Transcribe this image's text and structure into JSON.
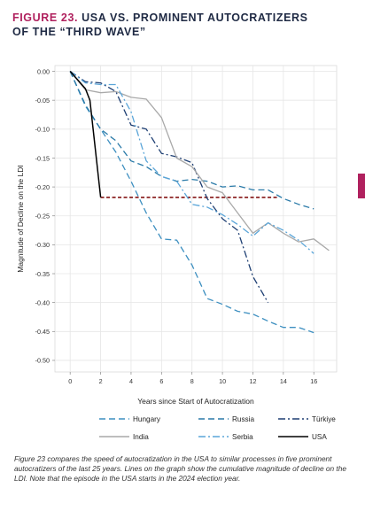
{
  "header": {
    "figure_label": "FIGURE 23.",
    "title_line1": "USA VS. PROMINENT AUTOCRATIZERS",
    "title_line2": "OF THE “THIRD WAVE”"
  },
  "caption": "Figure 23 compares the speed of autocratization in the USA to similar processes in five prominent autocratizers of the last 25 years. Lines on the graph show the cumulative magnitude of decline on the LDI. Note that the episode in the USA starts in the 2024 election year.",
  "colors": {
    "accent": "#b0215e",
    "title": "#1f2a44",
    "hungary": "#3d8fc0",
    "russia": "#2a7aa8",
    "turkiye": "#1e3f73",
    "india": "#a9a9a9",
    "serbia": "#5aa5d8",
    "usa": "#000000",
    "usa_reference": "#7a0000"
  },
  "chart_data": {
    "type": "line",
    "title": "",
    "xlabel": "Years since Start of Autocratization",
    "ylabel": "Magnitude of Decline on the LDI",
    "xlim": [
      -1,
      17.5
    ],
    "ylim": [
      -0.52,
      0.01
    ],
    "xticks": [
      0,
      2,
      4,
      6,
      8,
      10,
      12,
      14,
      16
    ],
    "yticks": [
      0.0,
      -0.05,
      -0.1,
      -0.15,
      -0.2,
      -0.25,
      -0.3,
      -0.35,
      -0.4,
      -0.45,
      -0.5
    ],
    "ytick_labels": [
      "0.00",
      "-0.05",
      "-0.10",
      "-0.15",
      "-0.20",
      "-0.25",
      "-0.30",
      "-0.35",
      "-0.40",
      "-0.45",
      "-0.50"
    ],
    "grid": true,
    "legend_position": "bottom",
    "series": [
      {
        "name": "Hungary",
        "style": "dashed",
        "x": [
          0,
          1,
          2,
          3,
          4,
          5,
          6,
          7,
          8,
          9,
          10,
          11,
          12,
          13,
          14,
          15,
          16
        ],
        "values": [
          0.0,
          -0.06,
          -0.1,
          -0.14,
          -0.19,
          -0.245,
          -0.29,
          -0.292,
          -0.335,
          -0.393,
          -0.403,
          -0.415,
          -0.42,
          -0.432,
          -0.443,
          -0.443,
          -0.452
        ]
      },
      {
        "name": "Russia",
        "style": "dashed",
        "x": [
          0,
          1,
          2,
          3,
          4,
          5,
          6,
          7,
          8,
          9,
          10,
          11,
          12,
          13,
          14,
          15,
          16
        ],
        "values": [
          0.0,
          -0.058,
          -0.1,
          -0.12,
          -0.155,
          -0.165,
          -0.182,
          -0.19,
          -0.187,
          -0.19,
          -0.2,
          -0.198,
          -0.205,
          -0.205,
          -0.22,
          -0.23,
          -0.238
        ]
      },
      {
        "name": "Türkiye",
        "style": "dashdot",
        "x": [
          0,
          1,
          2,
          3,
          4,
          5,
          6,
          7,
          8,
          9,
          10,
          11,
          12,
          13
        ],
        "values": [
          0.0,
          -0.018,
          -0.02,
          -0.035,
          -0.093,
          -0.1,
          -0.142,
          -0.148,
          -0.158,
          -0.22,
          -0.255,
          -0.275,
          -0.355,
          -0.4
        ]
      },
      {
        "name": "India",
        "style": "solid",
        "x": [
          0,
          1,
          2,
          3,
          4,
          5,
          6,
          7,
          8,
          9,
          10,
          11,
          12,
          13,
          14,
          15,
          16,
          17
        ],
        "values": [
          0.0,
          -0.032,
          -0.037,
          -0.035,
          -0.045,
          -0.048,
          -0.08,
          -0.15,
          -0.165,
          -0.2,
          -0.21,
          -0.245,
          -0.28,
          -0.262,
          -0.28,
          -0.295,
          -0.29,
          -0.31
        ]
      },
      {
        "name": "Serbia",
        "style": "dashdot",
        "x": [
          0,
          1,
          2,
          3,
          4,
          5,
          6,
          7,
          8,
          9,
          10,
          11,
          12,
          13,
          14,
          15,
          16
        ],
        "values": [
          0.0,
          -0.02,
          -0.023,
          -0.023,
          -0.07,
          -0.155,
          -0.182,
          -0.19,
          -0.23,
          -0.235,
          -0.248,
          -0.265,
          -0.285,
          -0.262,
          -0.275,
          -0.292,
          -0.315
        ]
      },
      {
        "name": "USA",
        "style": "solid",
        "x": [
          0,
          1,
          1.3,
          2
        ],
        "values": [
          0.0,
          -0.03,
          -0.05,
          -0.218
        ]
      }
    ],
    "annotations": [
      {
        "type": "hline",
        "style": "dashed",
        "y": -0.218,
        "x_from": 2,
        "x_to": 13.7
      }
    ]
  }
}
